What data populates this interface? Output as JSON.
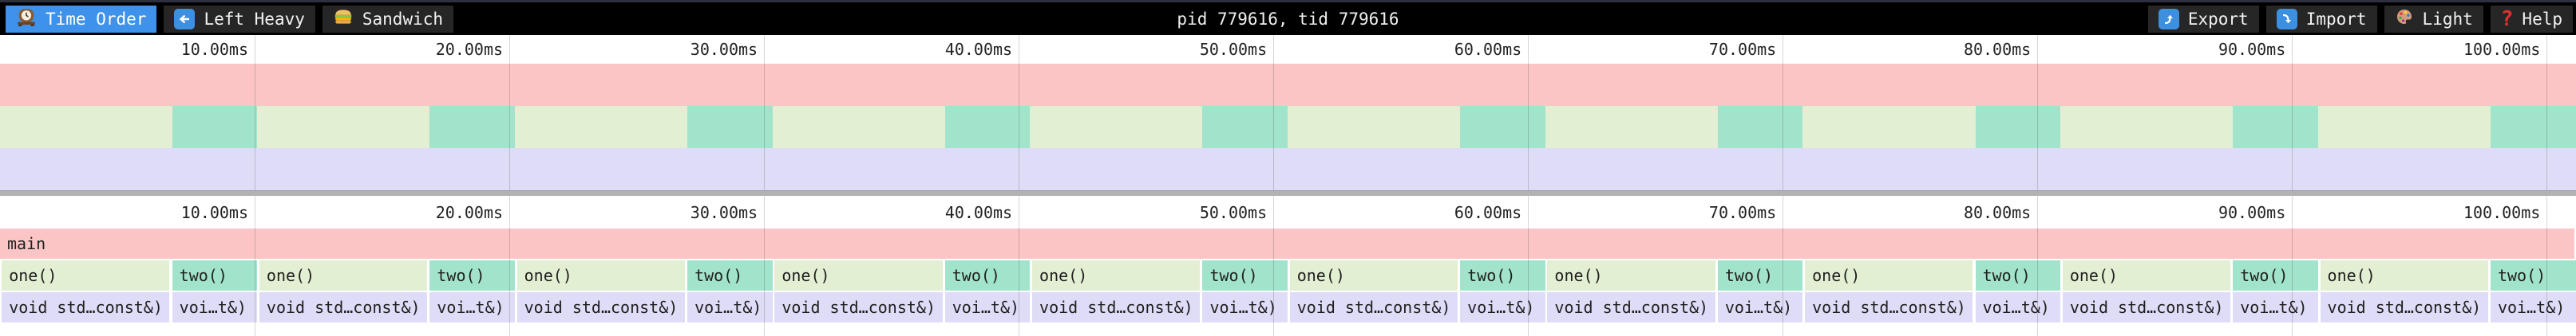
{
  "topbar": {
    "title": "pid 779616, tid 779616",
    "tabs": [
      {
        "id": "time-order",
        "label": "Time Order",
        "icon": "clock-icon",
        "active": true
      },
      {
        "id": "left-heavy",
        "label": "Left Heavy",
        "icon": "left-arrow-icon",
        "active": false
      },
      {
        "id": "sandwich",
        "label": "Sandwich",
        "icon": "sandwich-icon",
        "active": false
      }
    ],
    "actions": [
      {
        "id": "export",
        "label": "Export",
        "icon": "export-icon"
      },
      {
        "id": "import",
        "label": "Import",
        "icon": "import-icon"
      },
      {
        "id": "light",
        "label": "Light",
        "icon": "palette-icon"
      },
      {
        "id": "help",
        "label": "Help",
        "icon": "question-icon",
        "glyph": "?"
      }
    ]
  },
  "colors": {
    "accent_blue": "#3e92ea",
    "frame_pink": "#fbc5c5",
    "frame_green": "#e3efd2",
    "frame_teal": "#a2e3cb",
    "frame_lavender": "#dfdcf7",
    "separator_gray": "#b2b2b2"
  },
  "axis": {
    "tick_interval_ms": 10,
    "tick_labels": [
      "10.00ms",
      "20.00ms",
      "30.00ms",
      "40.00ms",
      "50.00ms",
      "60.00ms",
      "70.00ms",
      "80.00ms",
      "90.00ms",
      "100.00ms"
    ]
  },
  "chart_data": {
    "type": "flamegraph",
    "total_ms": 101.15,
    "iterations": 10,
    "iteration_ms": 10.115,
    "root_frame": {
      "label": "main",
      "color_key": "frame_pink",
      "start_ms": 0,
      "end_ms": 101.15
    },
    "frames_per_iteration": [
      {
        "label": "one()",
        "child_label": "void std…const&)",
        "color_key": "frame_green",
        "start_ms": 0.07,
        "end_ms": 6.66
      },
      {
        "label": "two()",
        "child_label": "voi…t&)",
        "color_key": "frame_teal",
        "start_ms": 6.76,
        "end_ms": 10.1
      }
    ],
    "child_color_key": "frame_lavender"
  }
}
